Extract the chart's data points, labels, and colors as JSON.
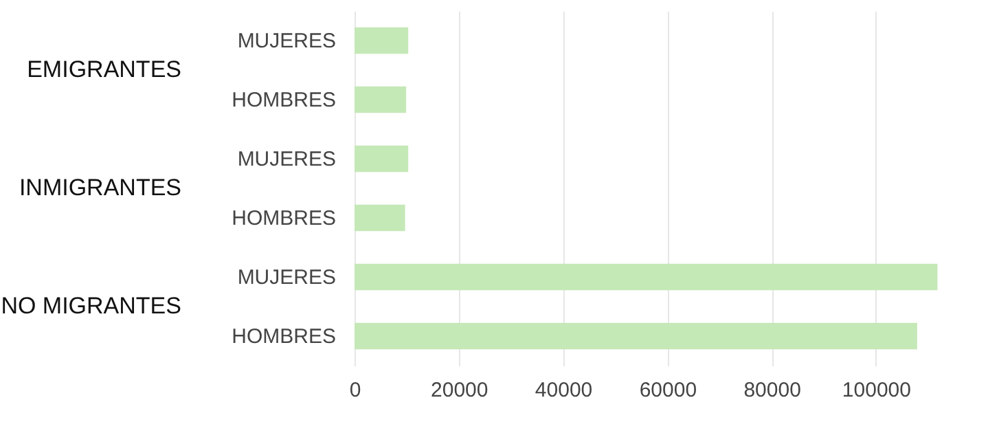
{
  "chart_data": {
    "type": "bar",
    "orientation": "horizontal",
    "categories": [
      "MUJERES",
      "HOMBRES",
      "MUJERES",
      "HOMBRES",
      "MUJERES",
      "HOMBRES"
    ],
    "values": [
      10300,
      9900,
      10300,
      9700,
      111800,
      107900
    ],
    "color": "#c5e8b7",
    "annotations": [
      "EMIGRANTES",
      "INMIGRANTES",
      "NO MIGRANTES"
    ],
    "xlim": [
      0,
      112000
    ],
    "xticks": [
      0,
      20000,
      40000,
      60000,
      80000,
      100000
    ],
    "grid": "x"
  }
}
